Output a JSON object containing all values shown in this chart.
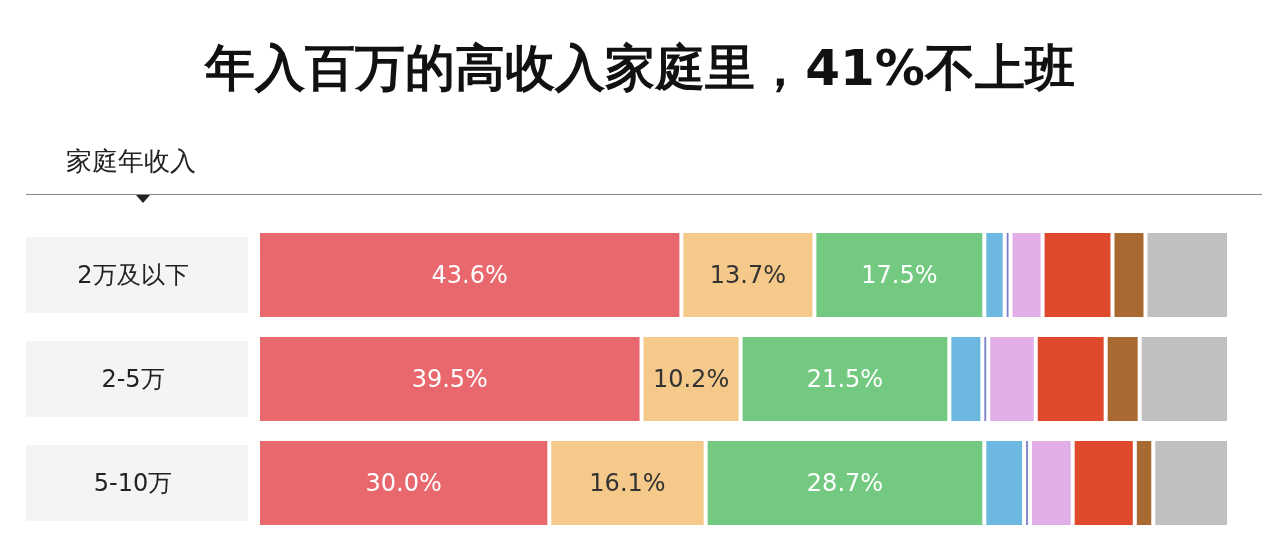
{
  "chart_data": {
    "type": "bar",
    "orientation": "horizontal",
    "stacked": true,
    "title": "年入百万的高收入家庭里，41%不上班",
    "ylabel": "家庭年收入",
    "categories": [
      "2万及以下",
      "2-5万",
      "5-10万"
    ],
    "series": [
      {
        "color": "#e8686e",
        "values": [
          43.6,
          39.5,
          30.0
        ],
        "value_labels": [
          "43.6%",
          "39.5%",
          "30.0%"
        ]
      },
      {
        "color": "#f5c98a",
        "values": [
          13.7,
          10.2,
          16.1
        ],
        "value_labels": [
          "13.7%",
          "10.2%",
          "16.1%"
        ]
      },
      {
        "color": "#74c981",
        "values": [
          17.5,
          21.5,
          28.7
        ],
        "value_labels": [
          "17.5%",
          "21.5%",
          "28.7%"
        ]
      },
      {
        "color": "#6cb8e0",
        "values": [
          2.1,
          3.4,
          4.1
        ]
      },
      {
        "color": "#7b7fc7",
        "values": [
          0.6,
          0.6,
          0.6
        ]
      },
      {
        "color": "#e2aee8",
        "values": [
          3.3,
          4.9,
          4.4
        ]
      },
      {
        "color": "#e04a2c",
        "values": [
          7.2,
          7.2,
          6.4
        ]
      },
      {
        "color": "#a86a30",
        "values": [
          3.4,
          3.5,
          1.9
        ]
      },
      {
        "color": "#c0c0c0",
        "values": [
          8.6,
          9.2,
          7.8
        ]
      }
    ],
    "xlim": [
      0,
      100
    ],
    "tick_labels": "y"
  }
}
